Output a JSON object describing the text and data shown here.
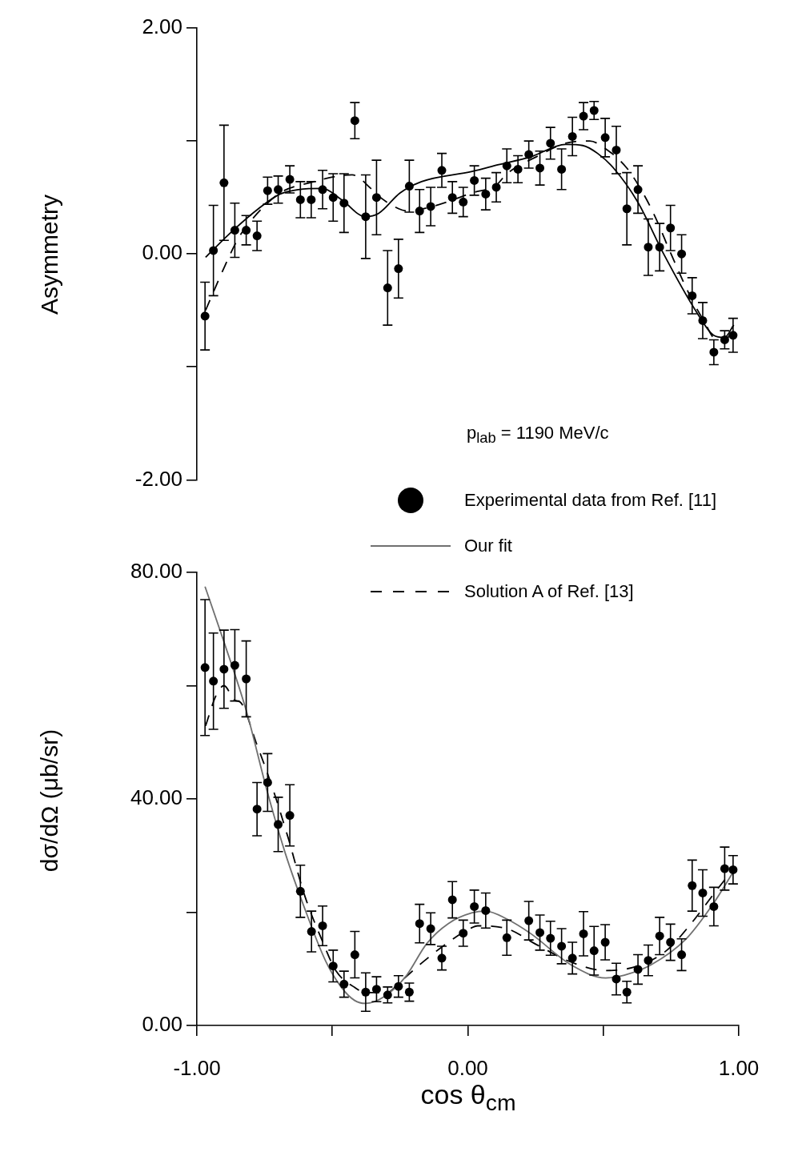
{
  "chart_data": [
    {
      "type": "scatter",
      "ylabel": "Asymmetry",
      "annotations": [
        "p$_{lab}$ = 1190 MeV/c"
      ],
      "xlim": [
        -1,
        1
      ],
      "ylim": [
        -2,
        2
      ],
      "yticks": [
        {
          "value": 2,
          "label": "2.00"
        },
        {
          "value": 1,
          "label": null
        },
        {
          "value": 0,
          "label": "0.00"
        },
        {
          "value": -1,
          "label": null
        },
        {
          "value": -2,
          "label": "-2.00"
        }
      ],
      "tick_labels": "y",
      "series": [
        {
          "type": "scatter",
          "color": "#000000",
          "marker": "circle",
          "x": [
            -0.97,
            -0.939,
            -0.9,
            -0.86,
            -0.818,
            -0.778,
            -0.739,
            -0.7,
            -0.657,
            -0.618,
            -0.578,
            -0.536,
            -0.497,
            -0.457,
            -0.417,
            -0.377,
            -0.337,
            -0.296,
            -0.256,
            -0.216,
            -0.178,
            -0.137,
            -0.096,
            -0.057,
            -0.017,
            0.024,
            0.066,
            0.105,
            0.144,
            0.185,
            0.225,
            0.266,
            0.305,
            0.346,
            0.386,
            0.427,
            0.466,
            0.507,
            0.548,
            0.587,
            0.628,
            0.666,
            0.708,
            0.748,
            0.789,
            0.828,
            0.867,
            0.908,
            0.948,
            0.979
          ],
          "values": [
            -0.55,
            0.03,
            0.63,
            0.21,
            0.21,
            0.16,
            0.56,
            0.57,
            0.66,
            0.48,
            0.48,
            0.57,
            0.5,
            0.45,
            1.18,
            0.33,
            0.5,
            -0.3,
            -0.13,
            0.6,
            0.38,
            0.42,
            0.74,
            0.5,
            0.46,
            0.65,
            0.53,
            0.59,
            0.78,
            0.75,
            0.88,
            0.76,
            0.98,
            0.75,
            1.04,
            1.22,
            1.27,
            1.03,
            0.92,
            0.4,
            0.57,
            0.06,
            0.06,
            0.23,
            0.0,
            -0.37,
            -0.59,
            -0.87,
            -0.76,
            -0.72
          ],
          "errors": [
            0.3,
            0.4,
            0.51,
            0.24,
            0.13,
            0.13,
            0.12,
            0.12,
            0.12,
            0.16,
            0.16,
            0.17,
            0.21,
            0.26,
            0.16,
            0.37,
            0.33,
            0.33,
            0.26,
            0.23,
            0.19,
            0.17,
            0.15,
            0.14,
            0.13,
            0.13,
            0.14,
            0.13,
            0.15,
            0.12,
            0.12,
            0.15,
            0.14,
            0.18,
            0.17,
            0.12,
            0.08,
            0.17,
            0.21,
            0.32,
            0.21,
            0.25,
            0.21,
            0.2,
            0.17,
            0.16,
            0.16,
            0.11,
            0.08,
            0.15
          ]
        },
        {
          "type": "line",
          "color": "#000000",
          "line_style": "solid",
          "x": [
            -0.968,
            -0.939,
            -0.861,
            -0.773,
            -0.693,
            -0.625,
            -0.536,
            -0.466,
            -0.378,
            -0.329,
            -0.25,
            -0.171,
            0.016,
            0.114,
            0.232,
            0.361,
            0.424,
            0.479,
            0.538,
            0.627,
            0.725,
            0.843,
            0.907,
            0.947,
            0.981
          ],
          "values": [
            -0.03,
            0.04,
            0.22,
            0.4,
            0.53,
            0.57,
            0.58,
            0.48,
            0.33,
            0.36,
            0.54,
            0.64,
            0.73,
            0.79,
            0.86,
            0.97,
            0.96,
            0.89,
            0.76,
            0.46,
            -0.01,
            -0.51,
            -0.72,
            -0.74,
            -0.63
          ]
        },
        {
          "type": "line",
          "color": "#000000",
          "line_style": "dashed",
          "x": [
            -0.968,
            -0.905,
            -0.849,
            -0.802,
            -0.693,
            -0.584,
            -0.427,
            -0.358,
            -0.338,
            -0.255,
            -0.22,
            -0.131,
            0.016,
            0.105,
            0.144,
            0.253,
            0.361,
            0.45,
            0.509,
            0.587,
            0.651,
            0.691,
            0.75,
            0.824,
            0.873,
            0.912,
            0.952,
            0.981
          ],
          "values": [
            -0.5,
            -0.15,
            0.13,
            0.29,
            0.54,
            0.63,
            0.7,
            0.58,
            0.53,
            0.4,
            0.38,
            0.42,
            0.54,
            0.61,
            0.71,
            0.86,
            0.98,
            1.0,
            0.93,
            0.76,
            0.52,
            0.33,
            0.0,
            -0.39,
            -0.6,
            -0.75,
            -0.76,
            -0.63
          ]
        }
      ]
    },
    {
      "type": "scatter",
      "ylabel": "dσ/dΩ  (μb/sr)",
      "xlabel": "cos θ$_{cm}$",
      "legend": "top right",
      "xlim": [
        -1,
        1
      ],
      "xticks": [
        {
          "value": -1,
          "label": "-1.00"
        },
        {
          "value": -0.5,
          "label": null
        },
        {
          "value": 0,
          "label": "0.00"
        },
        {
          "value": 0.5,
          "label": null
        },
        {
          "value": 1,
          "label": "1.00"
        }
      ],
      "ylim": [
        0,
        80
      ],
      "yticks": [
        {
          "value": 80,
          "label": "80.00"
        },
        {
          "value": 60,
          "label": null
        },
        {
          "value": 40,
          "label": "40.00"
        },
        {
          "value": 20,
          "label": null
        },
        {
          "value": 0,
          "label": "0.00"
        }
      ],
      "series": [
        {
          "type": "scatter",
          "name": "Experimental data from Ref. [11]",
          "color": "#000000",
          "marker": "circle",
          "x": [
            -0.97,
            -0.939,
            -0.9,
            -0.86,
            -0.818,
            -0.778,
            -0.739,
            -0.7,
            -0.657,
            -0.618,
            -0.577,
            -0.536,
            -0.497,
            -0.457,
            -0.417,
            -0.377,
            -0.337,
            -0.296,
            -0.256,
            -0.216,
            -0.178,
            -0.137,
            -0.096,
            -0.057,
            -0.017,
            0.024,
            0.066,
            0.144,
            0.225,
            0.266,
            0.305,
            0.346,
            0.386,
            0.427,
            0.466,
            0.507,
            0.548,
            0.587,
            0.628,
            0.666,
            0.708,
            0.748,
            0.789,
            0.828,
            0.867,
            0.908,
            0.948,
            0.979
          ],
          "values": [
            63.2,
            60.8,
            62.9,
            63.6,
            61.2,
            38.2,
            42.9,
            35.5,
            37.1,
            23.7,
            16.6,
            17.6,
            10.5,
            7.3,
            12.5,
            5.9,
            6.4,
            5.4,
            6.9,
            5.9,
            18.0,
            17.1,
            11.9,
            22.2,
            16.3,
            21.0,
            20.3,
            15.5,
            18.5,
            16.4,
            15.4,
            14.0,
            11.9,
            16.2,
            13.2,
            14.7,
            8.2,
            5.9,
            9.9,
            11.5,
            15.8,
            14.7,
            12.5,
            24.7,
            23.4,
            21.0,
            27.7,
            27.5
          ],
          "errors": [
            12,
            8.5,
            6.9,
            6.3,
            6.7,
            4.7,
            5.1,
            4.8,
            5.4,
            4.6,
            3.6,
            3.5,
            2.8,
            2.3,
            4.1,
            3.4,
            2.2,
            1.4,
            1.9,
            1.6,
            3.4,
            2.8,
            2.1,
            3.2,
            2.3,
            2.9,
            3.1,
            3.1,
            3.4,
            3.1,
            3.0,
            3.1,
            2.8,
            3.9,
            4.3,
            3.1,
            2.8,
            1.9,
            2.6,
            2.7,
            3.3,
            3.2,
            2.8,
            4.5,
            4.1,
            3.4,
            3.8,
            2.5
          ]
        },
        {
          "type": "line",
          "name": "Our fit",
          "color": "#707070",
          "line_style": "solid",
          "x": [
            -0.97,
            -0.902,
            -0.816,
            -0.742,
            -0.673,
            -0.604,
            -0.525,
            -0.466,
            -0.417,
            -0.378,
            -0.309,
            -0.23,
            -0.151,
            -0.072,
            0.016,
            0.066,
            0.144,
            0.233,
            0.381,
            0.509,
            0.578,
            0.676,
            0.804,
            0.903,
            0.981
          ],
          "values": [
            77.5,
            68.0,
            55.3,
            41.6,
            30.3,
            20.9,
            11.4,
            6.7,
            4.4,
            3.9,
            5.1,
            8.6,
            14.5,
            18.0,
            19.9,
            20.2,
            18.8,
            16.2,
            10.7,
            8.4,
            8.9,
            10.7,
            15.2,
            21.3,
            27.2
          ]
        },
        {
          "type": "line",
          "name": "Solution A of Ref. [13]",
          "color": "#000000",
          "line_style": "dashed",
          "x": [
            -0.968,
            -0.929,
            -0.9,
            -0.86,
            -0.84,
            -0.781,
            -0.722,
            -0.663,
            -0.604,
            -0.535,
            -0.486,
            -0.417,
            -0.378,
            -0.299,
            -0.25,
            -0.171,
            -0.072,
            0.016,
            0.036,
            0.144,
            0.253,
            0.381,
            0.509,
            0.627,
            0.735,
            0.824,
            0.912,
            0.981
          ],
          "values": [
            52.9,
            58.3,
            60.0,
            57.4,
            57.1,
            49.9,
            42.1,
            33.1,
            23.2,
            14.7,
            9.6,
            6.7,
            5.8,
            5.8,
            7.7,
            11.0,
            14.7,
            17.3,
            17.6,
            17.1,
            14.3,
            11.2,
            9.7,
            10.5,
            13.3,
            18.0,
            23.5,
            27.7
          ]
        }
      ]
    }
  ]
}
